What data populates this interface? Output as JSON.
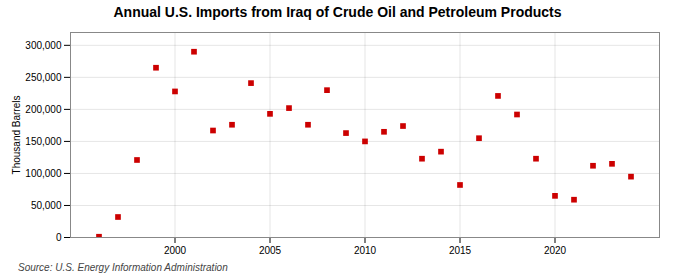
{
  "chart_data": {
    "type": "scatter",
    "title": "Annual U.S. Imports from Iraq of Crude Oil and Petroleum Products",
    "ylabel": "Thousand Barrels",
    "source": "Source: U.S. Energy Information Administration",
    "x": [
      1996,
      1997,
      1998,
      1999,
      2000,
      2001,
      2002,
      2003,
      2004,
      2005,
      2006,
      2007,
      2008,
      2009,
      2010,
      2011,
      2012,
      2013,
      2014,
      2015,
      2016,
      2017,
      2018,
      2019,
      2020,
      2021,
      2022,
      2023,
      2024
    ],
    "values": [
      1200,
      32000,
      121000,
      265000,
      228000,
      290000,
      167000,
      176000,
      241000,
      193000,
      202000,
      176000,
      230000,
      163000,
      150000,
      165000,
      174000,
      123000,
      134000,
      82000,
      155000,
      221000,
      192000,
      123000,
      65000,
      59000,
      112000,
      115000,
      95000
    ],
    "color": "#cc0000",
    "marker": "square",
    "xlim": [
      1994.5,
      2025.5
    ],
    "xticks": [
      2000,
      2005,
      2010,
      2015,
      2020
    ],
    "ylim": [
      0,
      320000
    ],
    "yticks": [
      0,
      {
        "value": 50000,
        "label": "50,000"
      },
      {
        "value": 100000,
        "label": "100,000"
      },
      {
        "value": 150000,
        "label": "150,000"
      },
      {
        "value": 200000,
        "label": "200,000"
      },
      {
        "value": 250000,
        "label": "250,000"
      },
      {
        "value": 300000,
        "label": "300,000"
      }
    ],
    "grid": true
  }
}
